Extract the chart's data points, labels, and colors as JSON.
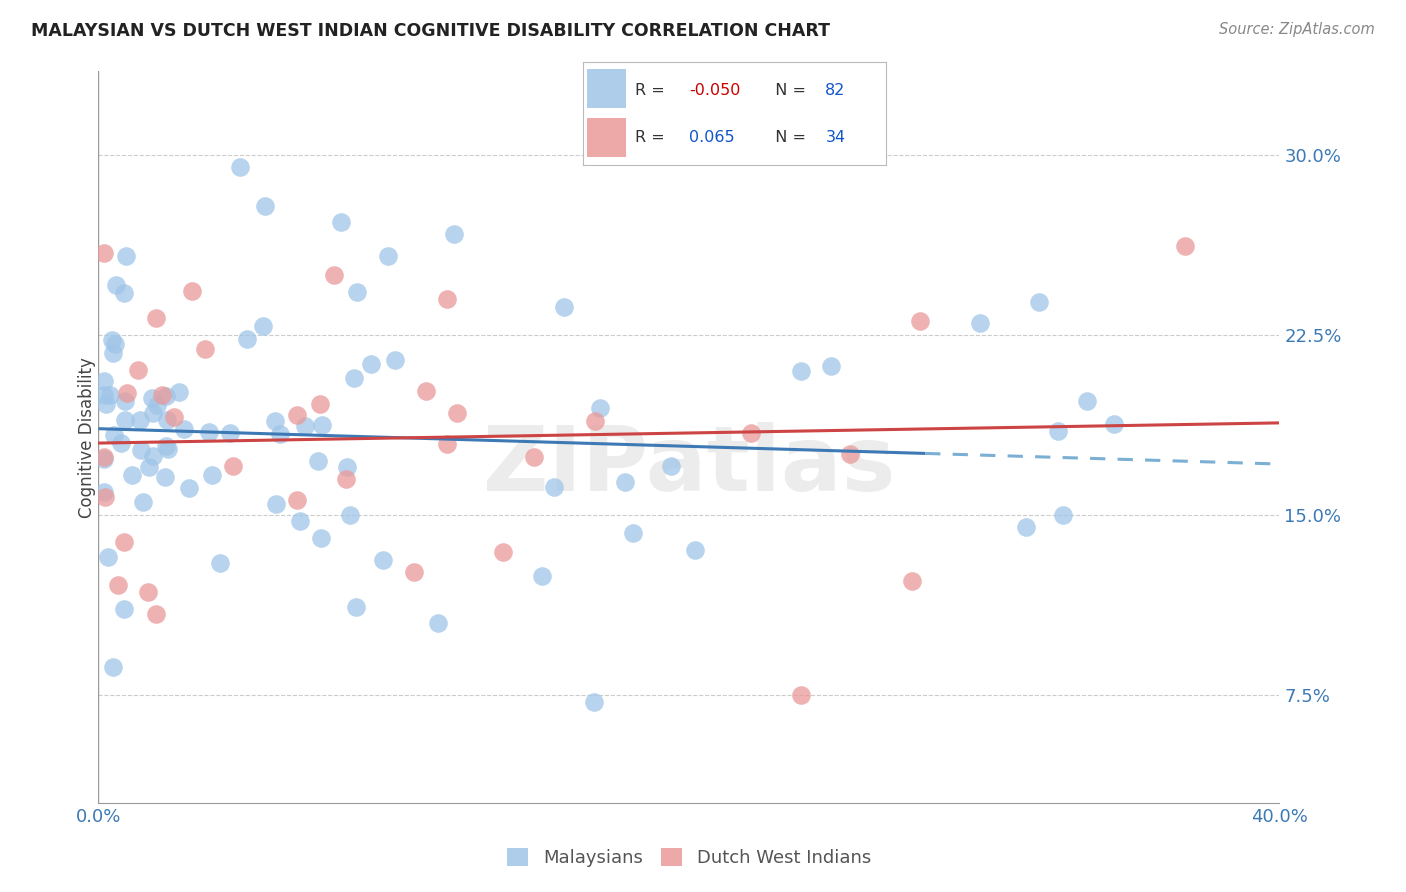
{
  "title": "MALAYSIAN VS DUTCH WEST INDIAN COGNITIVE DISABILITY CORRELATION CHART",
  "source": "Source: ZipAtlas.com",
  "ylabel": "Cognitive Disability",
  "right_yticks": [
    "30.0%",
    "22.5%",
    "15.0%",
    "7.5%"
  ],
  "right_ytick_vals": [
    0.3,
    0.225,
    0.15,
    0.075
  ],
  "xlim": [
    0.0,
    0.4
  ],
  "ylim": [
    0.03,
    0.335
  ],
  "malaysian_R": "-0.050",
  "malaysian_N": "82",
  "dutch_R": "0.065",
  "dutch_N": "34",
  "blue_color": "#9fc5e8",
  "pink_color": "#ea9999",
  "trend_blue": "#3d7ab5",
  "trend_pink": "#cc4444",
  "trend_blue_dashed_color": "#7bafd4",
  "background": "#ffffff",
  "watermark": "ZIPatlas",
  "blue_scatter_seed": 42,
  "pink_scatter_seed": 7,
  "legend_R_color": "#cc0000",
  "legend_N_color": "#1155cc",
  "legend_border_color": "#cccccc"
}
